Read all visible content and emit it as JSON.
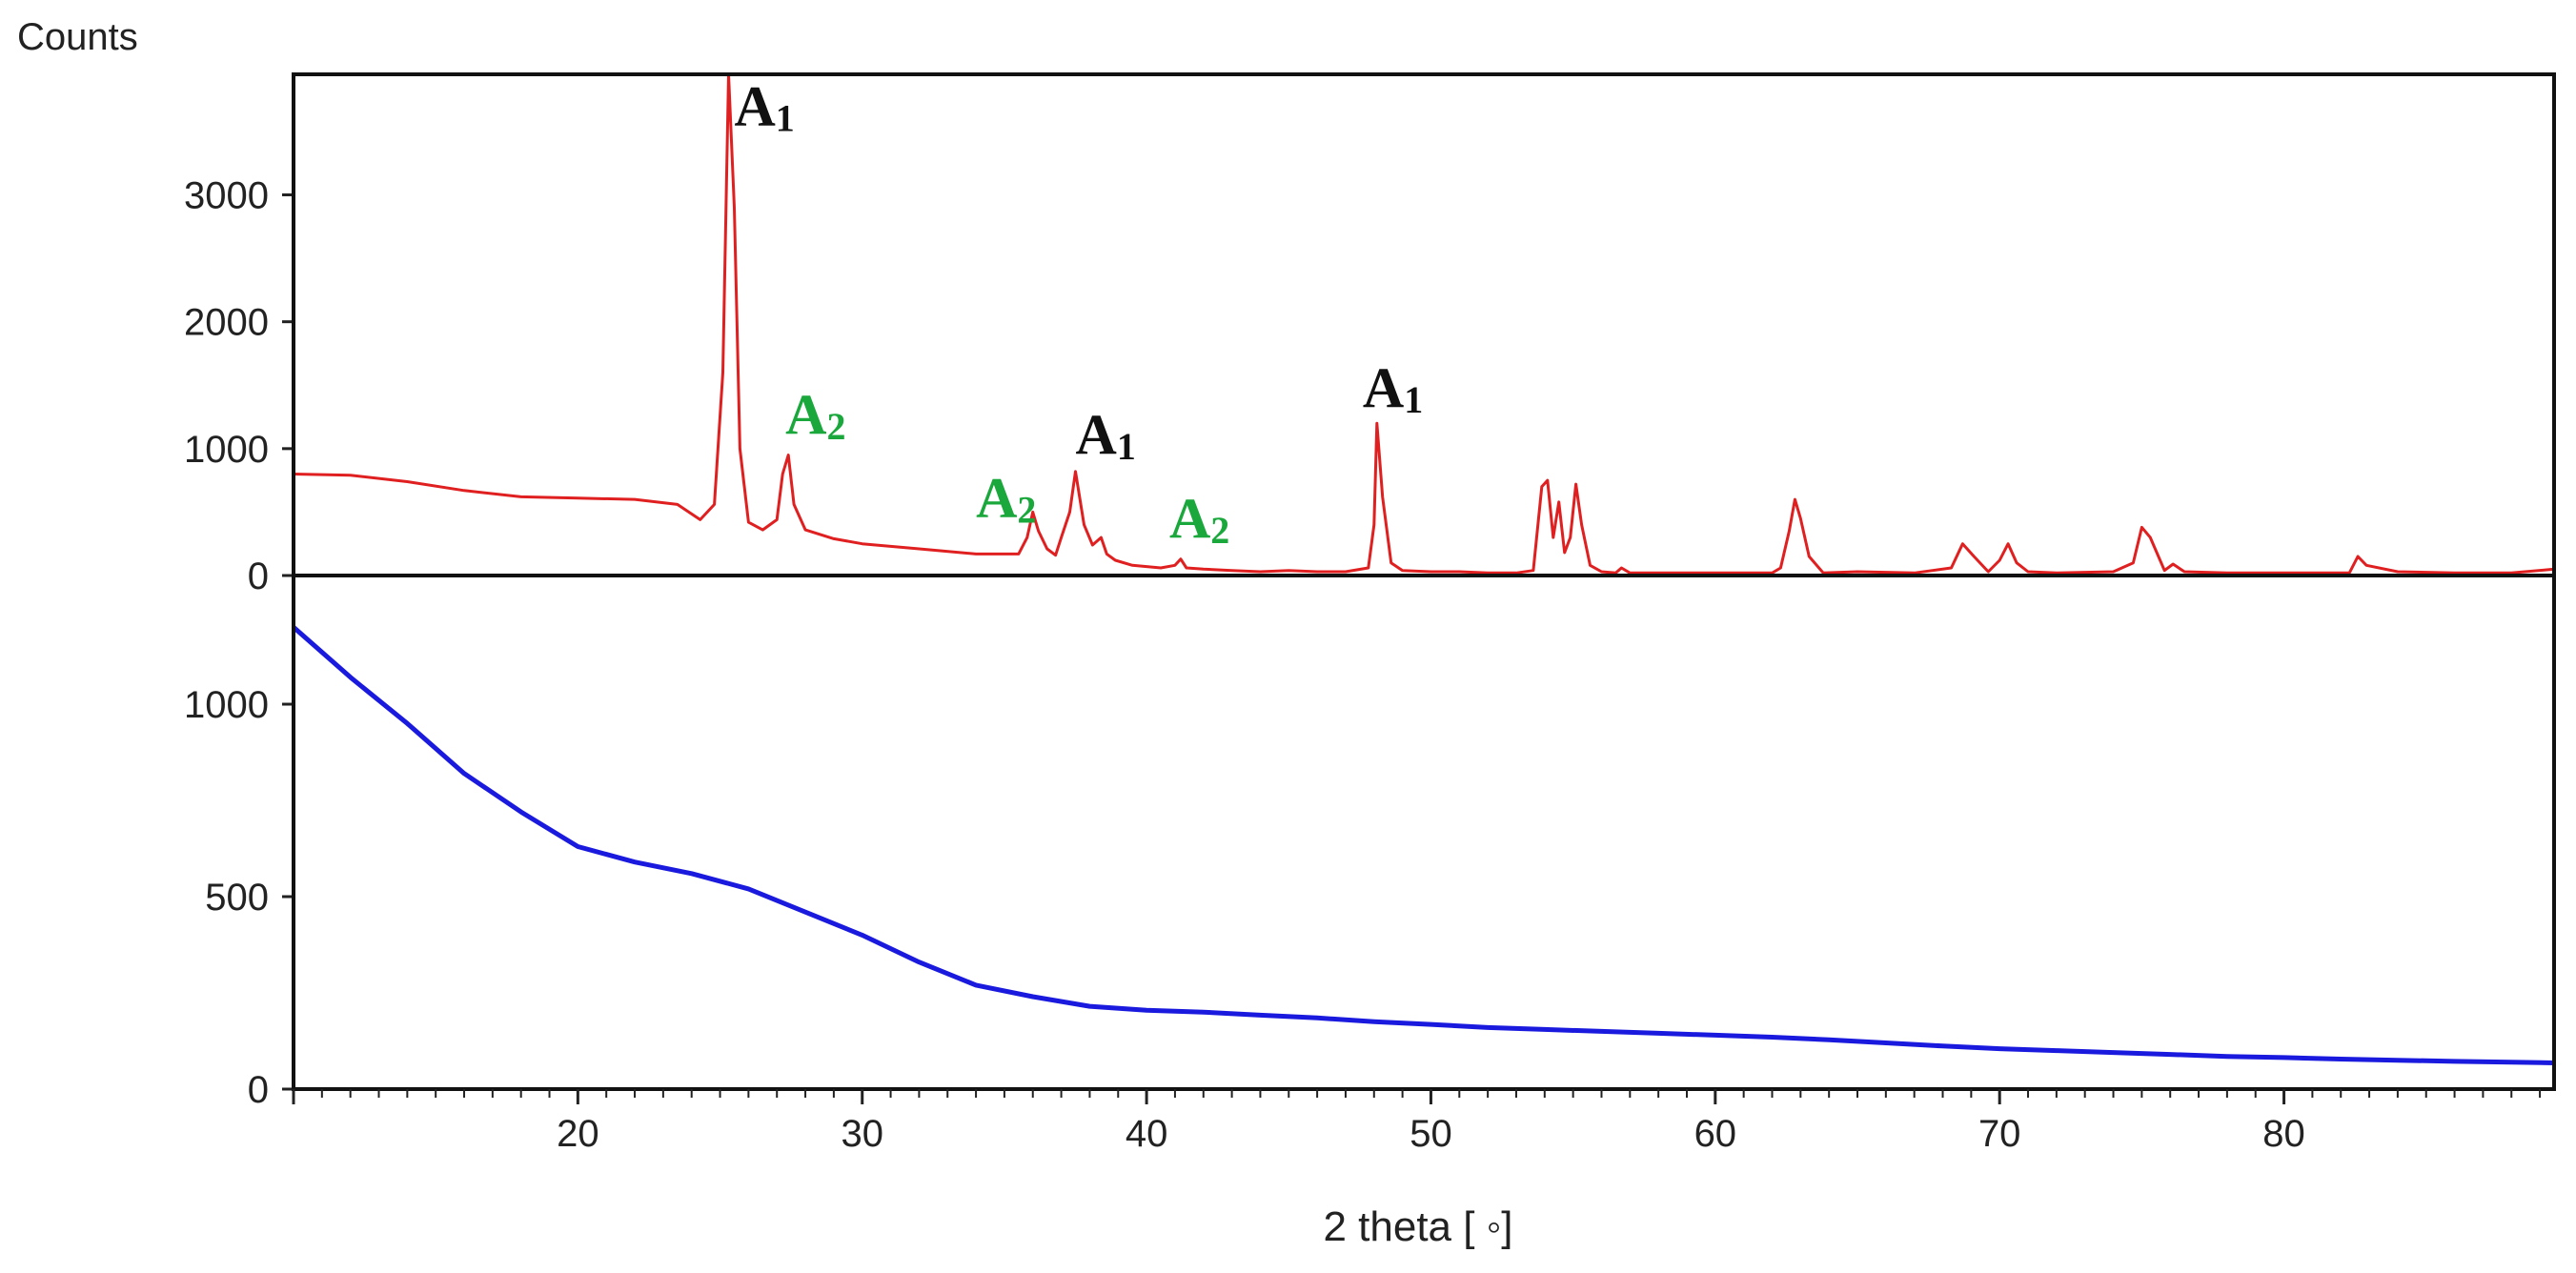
{
  "chart_data": {
    "type": "line",
    "ylabel": "Counts",
    "xlabel": "2 theta [ ◦]",
    "xlim": [
      10,
      89.5
    ],
    "x_ticks": [
      "20",
      "30",
      "40",
      "50",
      "60",
      "70",
      "80"
    ],
    "grid": false,
    "panels": [
      {
        "id": "top",
        "ylim": [
          0,
          3950
        ],
        "y_ticks": [
          "0",
          "1000",
          "2000",
          "3000"
        ],
        "color": "#e02020",
        "series": [
          {
            "x": [
              10,
              12,
              14,
              16,
              18,
              20,
              22,
              23.5,
              24.3,
              24.8,
              25.1,
              25.3,
              25.5,
              25.7,
              26.0,
              26.5,
              27.0,
              27.2,
              27.4,
              27.6,
              28.0,
              29.0,
              30.0,
              32.0,
              34.0,
              35.5,
              35.8,
              36.0,
              36.2,
              36.5,
              36.8,
              37.0,
              37.3,
              37.5,
              37.8,
              38.1,
              38.4,
              38.6,
              38.9,
              39.5,
              40.5,
              41.0,
              41.2,
              41.4,
              42.0,
              43.0,
              44.0,
              45.0,
              46.0,
              47.0,
              47.8,
              48.0,
              48.1,
              48.3,
              48.6,
              49.0,
              50.0,
              51.0,
              52.0,
              53.0,
              53.6,
              53.9,
              54.1,
              54.3,
              54.5,
              54.7,
              54.9,
              55.1,
              55.3,
              55.6,
              56.0,
              56.5,
              56.7,
              57.0,
              58.0,
              60.0,
              62.0,
              62.3,
              62.6,
              62.8,
              63.0,
              63.3,
              63.8,
              65.0,
              67.0,
              68.3,
              68.7,
              69.1,
              69.6,
              70.0,
              70.3,
              70.6,
              71.0,
              72.0,
              74.0,
              74.7,
              75.0,
              75.3,
              75.8,
              76.1,
              76.5,
              78.0,
              80.0,
              82.3,
              82.6,
              82.9,
              84.0,
              86.0,
              88.0,
              89.5
            ],
            "y": [
              800,
              790,
              740,
              670,
              620,
              610,
              600,
              560,
              440,
              560,
              1600,
              3950,
              2900,
              1000,
              420,
              360,
              440,
              800,
              950,
              560,
              360,
              290,
              250,
              210,
              170,
              170,
              300,
              500,
              350,
              210,
              160,
              300,
              500,
              820,
              400,
              240,
              300,
              170,
              120,
              80,
              60,
              80,
              130,
              60,
              50,
              40,
              30,
              40,
              30,
              30,
              60,
              400,
              1200,
              620,
              100,
              40,
              30,
              30,
              20,
              20,
              40,
              700,
              750,
              300,
              580,
              180,
              300,
              720,
              400,
              80,
              30,
              20,
              60,
              20,
              20,
              20,
              20,
              60,
              350,
              600,
              450,
              150,
              20,
              30,
              20,
              60,
              250,
              150,
              30,
              120,
              250,
              100,
              30,
              20,
              30,
              100,
              380,
              300,
              40,
              90,
              30,
              20,
              20,
              20,
              150,
              80,
              30,
              20,
              20,
              50
            ]
          }
        ],
        "annotations": [
          {
            "main": "A",
            "sub": "1",
            "x": 25.5,
            "y": 3550,
            "color": "#111111"
          },
          {
            "main": "A",
            "sub": "2",
            "x": 27.3,
            "y": 1120,
            "color": "#1aa83c"
          },
          {
            "main": "A",
            "sub": "2",
            "x": 34.0,
            "y": 460,
            "color": "#1aa83c"
          },
          {
            "main": "A",
            "sub": "1",
            "x": 37.5,
            "y": 960,
            "color": "#111111"
          },
          {
            "main": "A",
            "sub": "2",
            "x": 40.8,
            "y": 300,
            "color": "#1aa83c"
          },
          {
            "main": "A",
            "sub": "1",
            "x": 47.6,
            "y": 1330,
            "color": "#111111"
          }
        ]
      },
      {
        "id": "bottom",
        "ylim": [
          0,
          1260
        ],
        "y_ticks": [
          "0",
          "500",
          "1000"
        ],
        "color": "#1a1adf",
        "series": [
          {
            "x": [
              10,
              12,
              14,
              16,
              18,
              20,
              22,
              24,
              26,
              28,
              30,
              32,
              34,
              36,
              38,
              40,
              42,
              44,
              46,
              48,
              50,
              52,
              54,
              56,
              58,
              60,
              62,
              64,
              66,
              68,
              70,
              72,
              74,
              76,
              78,
              80,
              82,
              84,
              86,
              88,
              89.5
            ],
            "y": [
              1200,
              1070,
              950,
              820,
              720,
              630,
              590,
              560,
              520,
              460,
              400,
              330,
              270,
              240,
              215,
              205,
              200,
              192,
              185,
              175,
              168,
              160,
              155,
              150,
              145,
              140,
              135,
              128,
              120,
              112,
              105,
              100,
              95,
              90,
              85,
              82,
              78,
              75,
              72,
              70,
              68
            ]
          }
        ]
      }
    ]
  }
}
